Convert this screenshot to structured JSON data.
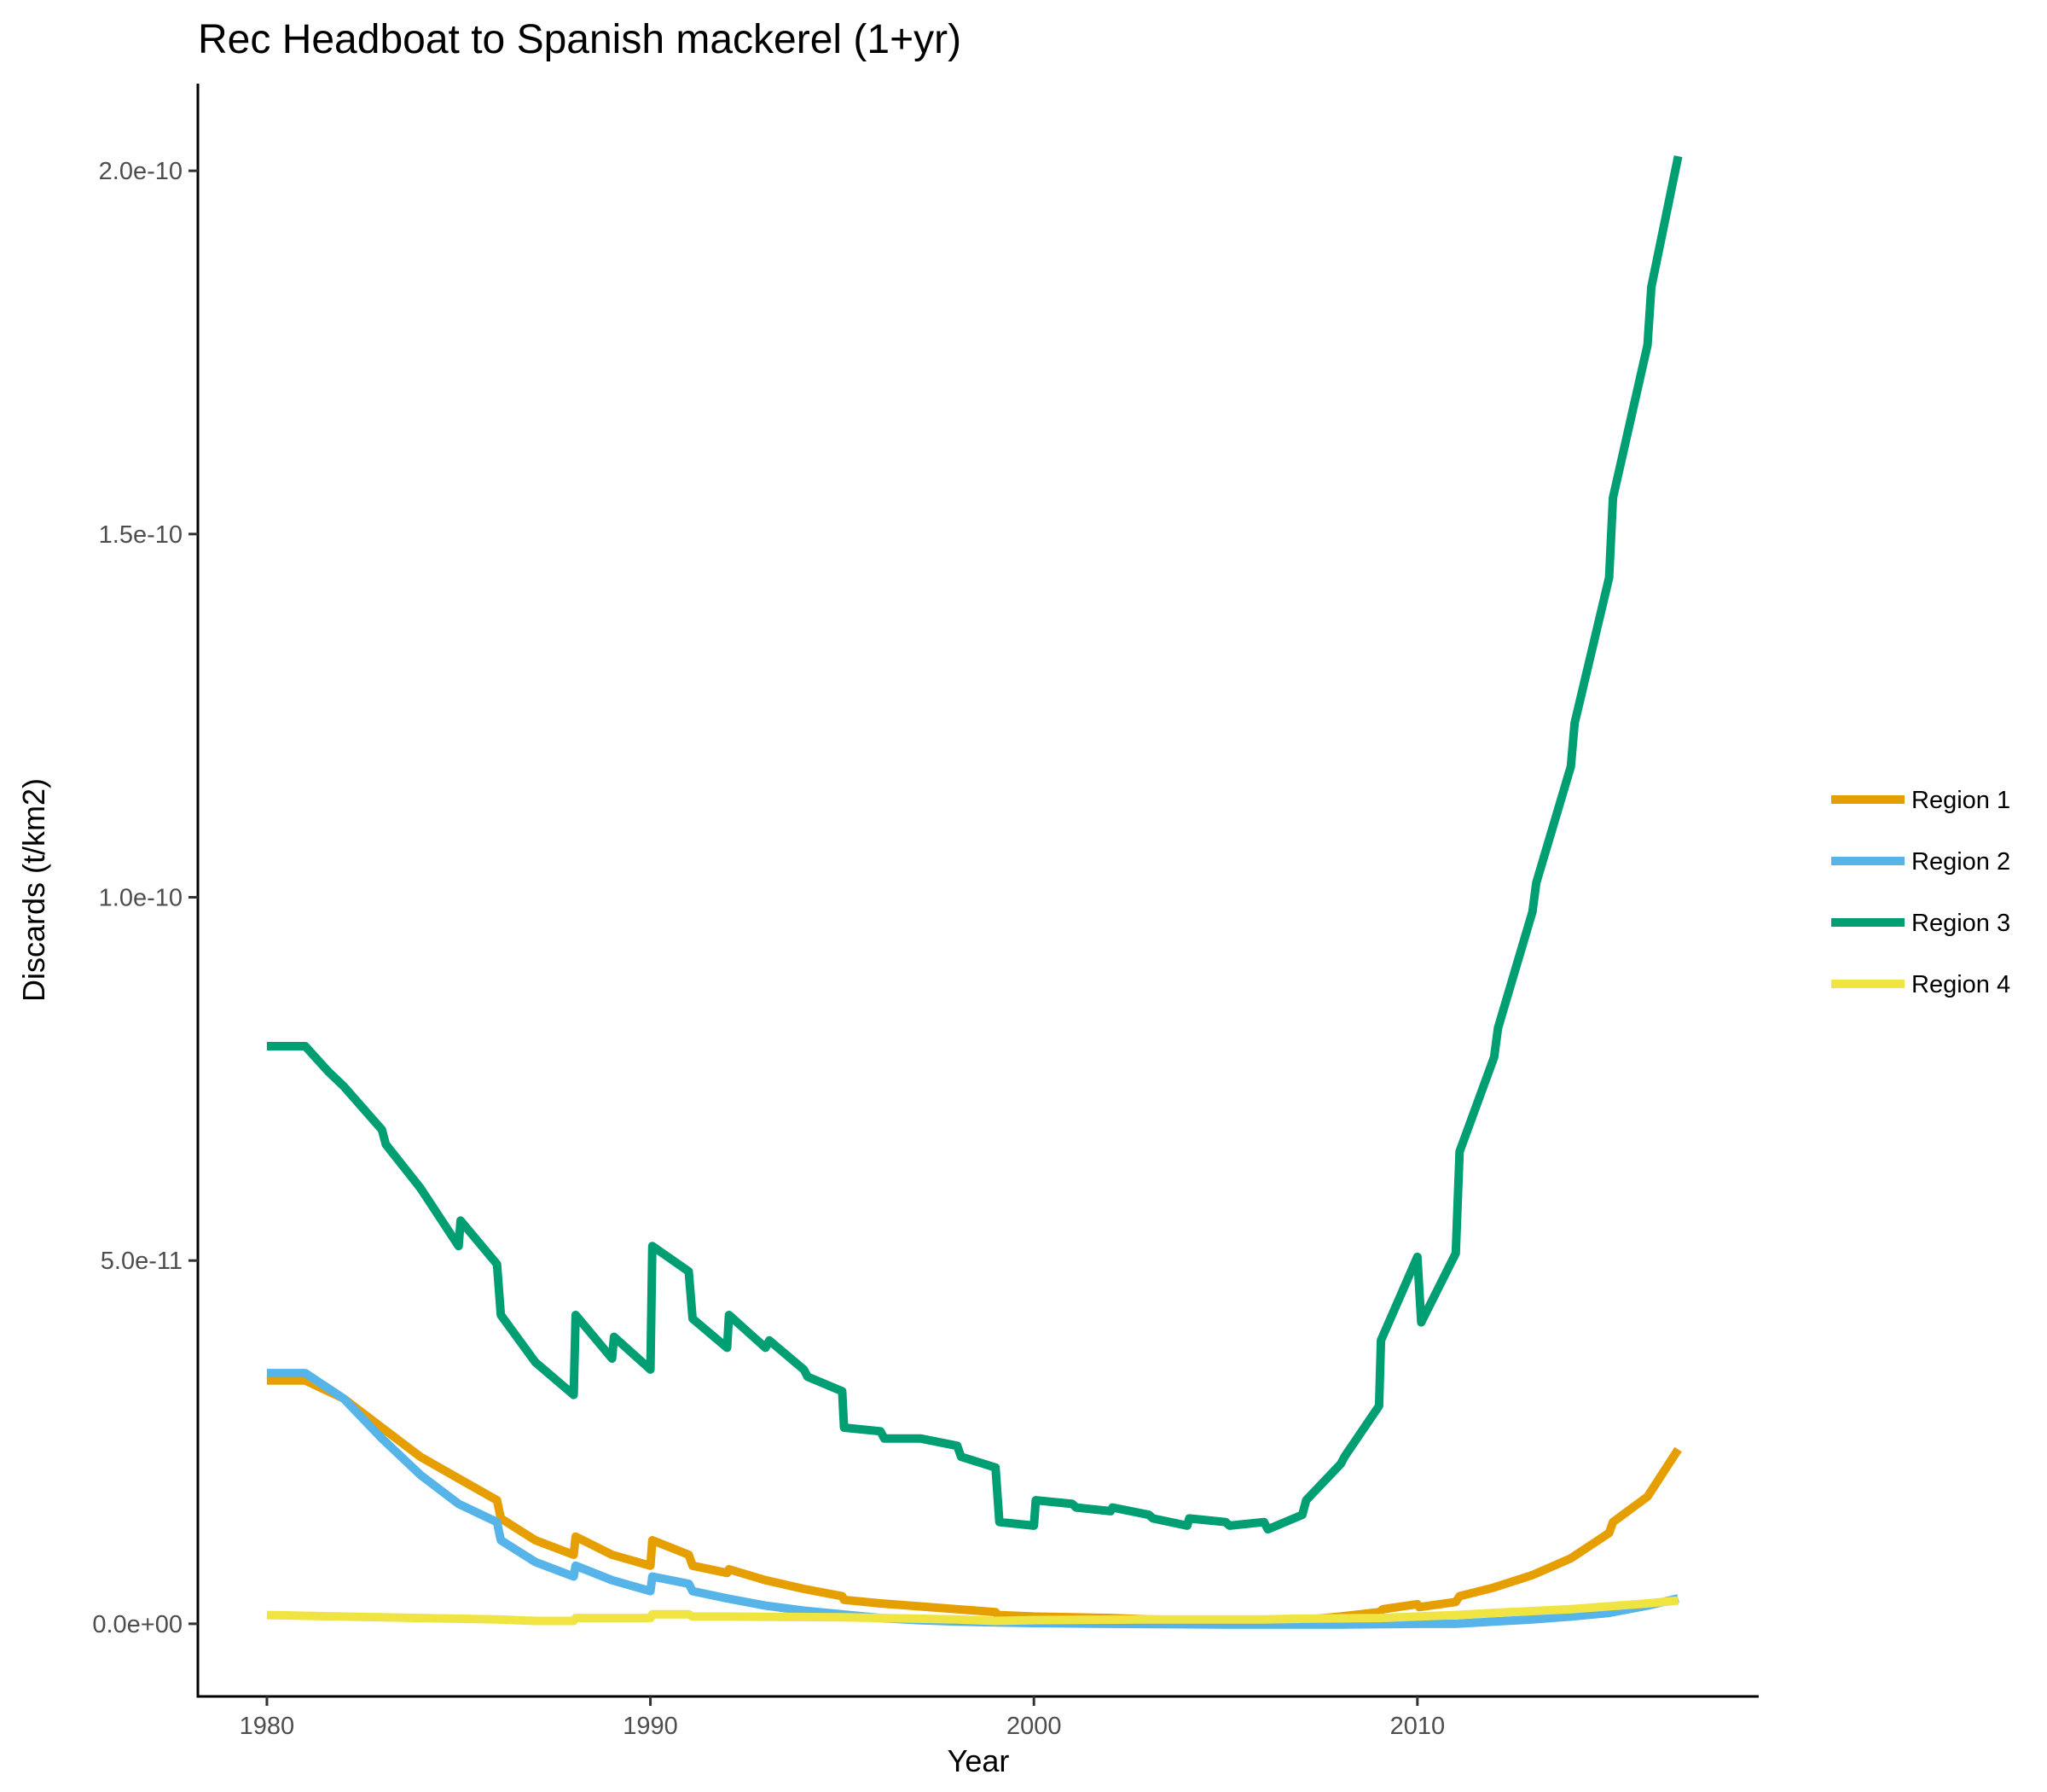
{
  "chart_data": {
    "type": "line",
    "title": "Rec Headboat to Spanish mackerel (1+yr)",
    "xlabel": "Year",
    "ylabel": "Discards (t/km2)",
    "xlim": [
      1978.2,
      2018.9
    ],
    "ylim": [
      -1e-11,
      2.12e-10
    ],
    "x_ticks": [
      1980,
      1990,
      2000,
      2010
    ],
    "x_tick_labels": [
      "1980",
      "1990",
      "2000",
      "2010"
    ],
    "y_ticks": [
      0,
      5e-11,
      1e-10,
      1.5e-10,
      2e-10
    ],
    "y_tick_labels": [
      "0.0e+00",
      "5.0e-11",
      "1.0e-10",
      "1.5e-10",
      "2.0e-10"
    ],
    "grid": false,
    "legend": {
      "position": "right"
    },
    "series": [
      {
        "name": "Region 1",
        "color": "#E69F00",
        "points": [
          [
            1980.0,
            3.35e-11
          ],
          [
            1981.0,
            3.35e-11
          ],
          [
            1982.0,
            3.1e-11
          ],
          [
            1983.0,
            2.7e-11
          ],
          [
            1984.0,
            2.3e-11
          ],
          [
            1985.0,
            2e-11
          ],
          [
            1986.0,
            1.7e-11
          ],
          [
            1986.1,
            1.45e-11
          ],
          [
            1987.0,
            1.15e-11
          ],
          [
            1988.0,
            9.5e-12
          ],
          [
            1988.05,
            1.2e-11
          ],
          [
            1989.0,
            9.5e-12
          ],
          [
            1990.0,
            8e-12
          ],
          [
            1990.05,
            1.15e-11
          ],
          [
            1991.0,
            9.5e-12
          ],
          [
            1991.1,
            8e-12
          ],
          [
            1992.0,
            7e-12
          ],
          [
            1992.05,
            7.5e-12
          ],
          [
            1993.0,
            6e-12
          ],
          [
            1994.0,
            4.8e-12
          ],
          [
            1995.0,
            3.8e-12
          ],
          [
            1995.05,
            3.3e-12
          ],
          [
            1996.0,
            2.8e-12
          ],
          [
            1997.0,
            2.4e-12
          ],
          [
            1998.0,
            2e-12
          ],
          [
            1999.0,
            1.6e-12
          ],
          [
            1999.05,
            1.2e-12
          ],
          [
            2000.0,
            1e-12
          ],
          [
            2001.0,
            9e-13
          ],
          [
            2002.0,
            8e-13
          ],
          [
            2003.0,
            6e-13
          ],
          [
            2004.0,
            5e-13
          ],
          [
            2005.0,
            4e-13
          ],
          [
            2006.0,
            3e-13
          ],
          [
            2007.0,
            5e-13
          ],
          [
            2008.0,
            1e-12
          ],
          [
            2009.0,
            1.6e-12
          ],
          [
            2009.1,
            2e-12
          ],
          [
            2010.0,
            2.7e-12
          ],
          [
            2010.05,
            2.3e-12
          ],
          [
            2011.0,
            3e-12
          ],
          [
            2011.1,
            3.8e-12
          ],
          [
            2012.0,
            5e-12
          ],
          [
            2013.0,
            6.7e-12
          ],
          [
            2014.0,
            9e-12
          ],
          [
            2015.0,
            1.25e-11
          ],
          [
            2015.1,
            1.4e-11
          ],
          [
            2016.0,
            1.75e-11
          ],
          [
            2016.8,
            2.4e-11
          ]
        ]
      },
      {
        "name": "Region 2",
        "color": "#56B4E9",
        "points": [
          [
            1980.0,
            3.45e-11
          ],
          [
            1981.0,
            3.45e-11
          ],
          [
            1982.0,
            3.1e-11
          ],
          [
            1983.0,
            2.55e-11
          ],
          [
            1984.0,
            2.05e-11
          ],
          [
            1985.0,
            1.65e-11
          ],
          [
            1986.0,
            1.4e-11
          ],
          [
            1986.1,
            1.15e-11
          ],
          [
            1987.0,
            8.5e-12
          ],
          [
            1988.0,
            6.5e-12
          ],
          [
            1988.05,
            8e-12
          ],
          [
            1989.0,
            6e-12
          ],
          [
            1990.0,
            4.5e-12
          ],
          [
            1990.05,
            6.5e-12
          ],
          [
            1991.0,
            5.5e-12
          ],
          [
            1991.1,
            4.5e-12
          ],
          [
            1992.0,
            3.5e-12
          ],
          [
            1993.0,
            2.5e-12
          ],
          [
            1994.0,
            1.8e-12
          ],
          [
            1995.0,
            1.3e-12
          ],
          [
            1996.0,
            8e-13
          ],
          [
            1997.0,
            5e-13
          ],
          [
            1998.0,
            3e-13
          ],
          [
            1999.0,
            2e-13
          ],
          [
            2000.0,
            1e-13
          ],
          [
            2002.0,
            0
          ],
          [
            2005.0,
            -1e-13
          ],
          [
            2008.0,
            -1e-13
          ],
          [
            2010.0,
            0
          ],
          [
            2011.0,
            0
          ],
          [
            2012.0,
            3e-13
          ],
          [
            2013.0,
            6e-13
          ],
          [
            2014.0,
            1e-12
          ],
          [
            2015.0,
            1.5e-12
          ],
          [
            2016.0,
            2.5e-12
          ],
          [
            2016.8,
            3.5e-12
          ]
        ]
      },
      {
        "name": "Region 3",
        "color": "#009E73",
        "points": [
          [
            1980.0,
            7.95e-11
          ],
          [
            1981.0,
            7.95e-11
          ],
          [
            1981.6,
            7.6e-11
          ],
          [
            1982.0,
            7.4e-11
          ],
          [
            1983.0,
            6.8e-11
          ],
          [
            1983.1,
            6.6e-11
          ],
          [
            1984.0,
            6e-11
          ],
          [
            1985.0,
            5.2e-11
          ],
          [
            1985.05,
            5.55e-11
          ],
          [
            1986.0,
            4.95e-11
          ],
          [
            1986.1,
            4.25e-11
          ],
          [
            1987.0,
            3.6e-11
          ],
          [
            1988.0,
            3.15e-11
          ],
          [
            1988.05,
            4.25e-11
          ],
          [
            1989.0,
            3.65e-11
          ],
          [
            1989.05,
            3.95e-11
          ],
          [
            1990.0,
            3.5e-11
          ],
          [
            1990.05,
            5.2e-11
          ],
          [
            1991.0,
            4.85e-11
          ],
          [
            1991.1,
            4.2e-11
          ],
          [
            1992.0,
            3.8e-11
          ],
          [
            1992.05,
            4.25e-11
          ],
          [
            1993.0,
            3.8e-11
          ],
          [
            1993.1,
            3.9e-11
          ],
          [
            1994.0,
            3.5e-11
          ],
          [
            1994.1,
            3.4e-11
          ],
          [
            1995.0,
            3.2e-11
          ],
          [
            1995.05,
            2.7e-11
          ],
          [
            1996.0,
            2.65e-11
          ],
          [
            1996.1,
            2.55e-11
          ],
          [
            1997.0,
            2.55e-11
          ],
          [
            1997.05,
            2.55e-11
          ],
          [
            1998.0,
            2.45e-11
          ],
          [
            1998.1,
            2.3e-11
          ],
          [
            1999.0,
            2.15e-11
          ],
          [
            1999.1,
            1.4e-11
          ],
          [
            2000.0,
            1.35e-11
          ],
          [
            2000.05,
            1.7e-11
          ],
          [
            2001.0,
            1.65e-11
          ],
          [
            2001.1,
            1.6e-11
          ],
          [
            2002.0,
            1.55e-11
          ],
          [
            2002.05,
            1.6e-11
          ],
          [
            2003.0,
            1.5e-11
          ],
          [
            2003.1,
            1.45e-11
          ],
          [
            2004.0,
            1.35e-11
          ],
          [
            2004.05,
            1.45e-11
          ],
          [
            2005.0,
            1.4e-11
          ],
          [
            2005.1,
            1.35e-11
          ],
          [
            2006.0,
            1.4e-11
          ],
          [
            2006.1,
            1.3e-11
          ],
          [
            2007.0,
            1.5e-11
          ],
          [
            2007.1,
            1.7e-11
          ],
          [
            2008.0,
            2.2e-11
          ],
          [
            2008.1,
            2.3e-11
          ],
          [
            2009.0,
            3e-11
          ],
          [
            2009.05,
            3.9e-11
          ],
          [
            2010.0,
            5.05e-11
          ],
          [
            2010.1,
            4.15e-11
          ],
          [
            2011.0,
            5.1e-11
          ],
          [
            2011.1,
            6.5e-11
          ],
          [
            2012.0,
            7.8e-11
          ],
          [
            2012.1,
            8.2e-11
          ],
          [
            2013.0,
            9.8e-11
          ],
          [
            2013.1,
            1.02e-10
          ],
          [
            2014.0,
            1.18e-10
          ],
          [
            2014.1,
            1.24e-10
          ],
          [
            2015.0,
            1.44e-10
          ],
          [
            2015.1,
            1.55e-10
          ],
          [
            2016.0,
            1.76e-10
          ],
          [
            2016.1,
            1.84e-10
          ],
          [
            2016.8,
            2.02e-10
          ]
        ]
      },
      {
        "name": "Region 4",
        "color": "#F0E442",
        "points": [
          [
            1980.0,
            1.2e-12
          ],
          [
            1982.0,
            1e-12
          ],
          [
            1984.0,
            8e-13
          ],
          [
            1986.0,
            6e-13
          ],
          [
            1987.0,
            4e-13
          ],
          [
            1988.0,
            4e-13
          ],
          [
            1988.05,
            8e-13
          ],
          [
            1990.0,
            8e-13
          ],
          [
            1990.05,
            1.3e-12
          ],
          [
            1991.0,
            1.3e-12
          ],
          [
            1991.1,
            1e-12
          ],
          [
            1992.0,
            1e-12
          ],
          [
            1995.0,
            9e-13
          ],
          [
            1998.0,
            6e-13
          ],
          [
            1999.0,
            4e-13
          ],
          [
            2000.0,
            5e-13
          ],
          [
            2003.0,
            6e-13
          ],
          [
            2006.0,
            6e-13
          ],
          [
            2007.0,
            7e-13
          ],
          [
            2009.0,
            8e-13
          ],
          [
            2011.0,
            1.2e-12
          ],
          [
            2012.0,
            1.5e-12
          ],
          [
            2014.0,
            2e-12
          ],
          [
            2015.0,
            2.4e-12
          ],
          [
            2016.0,
            2.8e-12
          ],
          [
            2016.8,
            3.2e-12
          ]
        ]
      }
    ]
  }
}
